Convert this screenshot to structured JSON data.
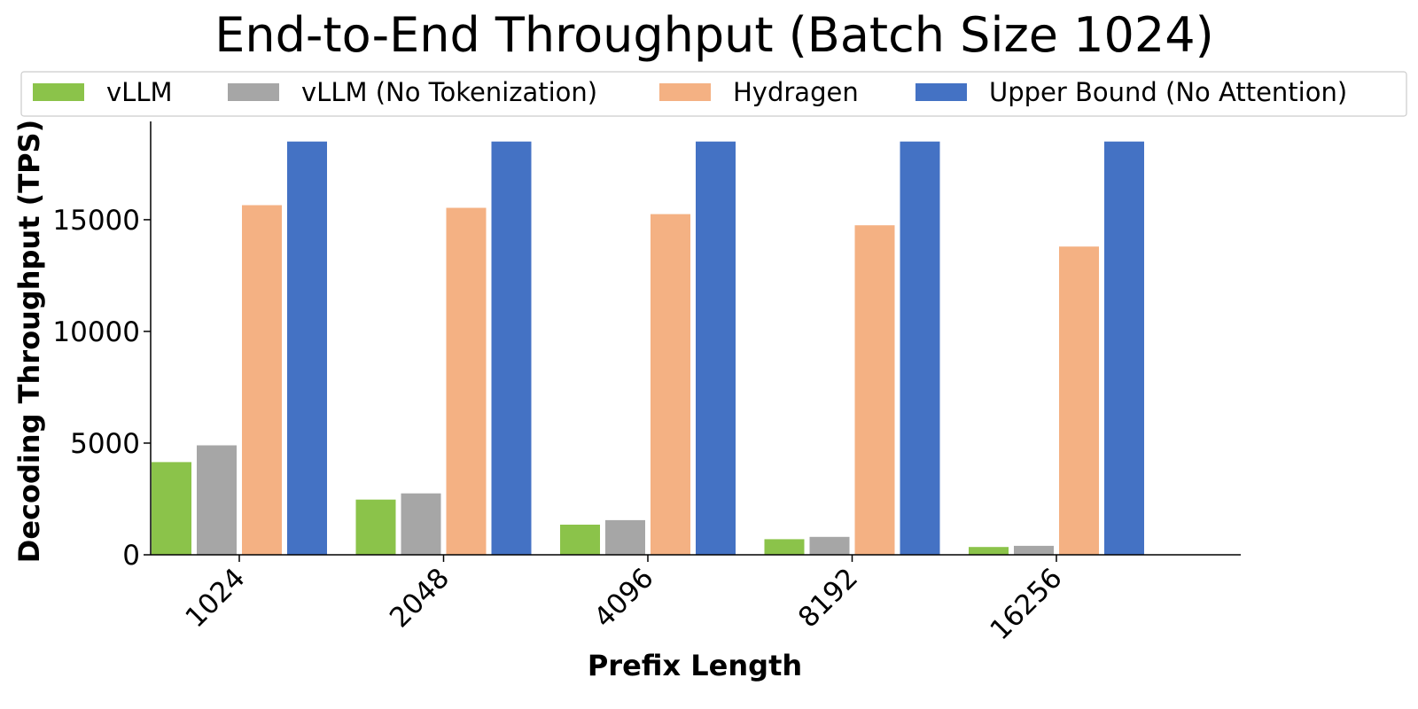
{
  "chart_data": {
    "type": "bar",
    "title": "End-to-End Throughput (Batch Size 1024)",
    "xlabel": "Prefix Length",
    "ylabel": "Decoding Throughput (TPS)",
    "categories": [
      "1024",
      "2048",
      "4096",
      "8192",
      "16256"
    ],
    "series": [
      {
        "name": "vLLM",
        "color": "#8bc34a",
        "values": [
          4150,
          2470,
          1350,
          700,
          350
        ]
      },
      {
        "name": "vLLM (No Tokenization)",
        "color": "#a6a6a6",
        "values": [
          4900,
          2750,
          1550,
          800,
          400
        ]
      },
      {
        "name": "Hydragen",
        "color": "#f4b183",
        "values": [
          15650,
          15530,
          15250,
          14750,
          13800
        ]
      },
      {
        "name": "Upper Bound (No Attention)",
        "color": "#4472c4",
        "values": [
          18500,
          18500,
          18500,
          18500,
          18500
        ]
      }
    ],
    "ylim": [
      0,
      19400
    ],
    "yticks": [
      0,
      5000,
      10000,
      15000
    ],
    "grid": false,
    "legend_position": "top"
  }
}
